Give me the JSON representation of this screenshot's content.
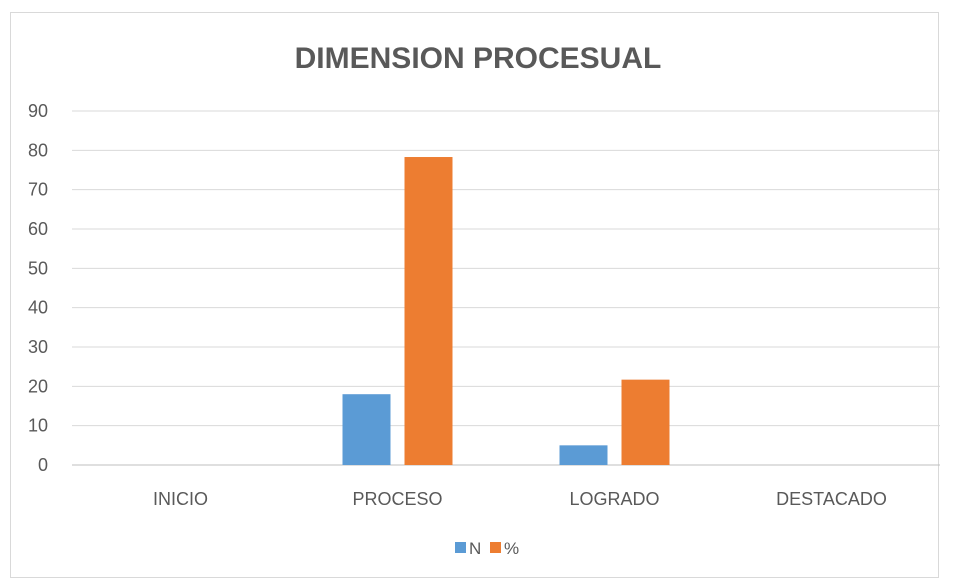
{
  "chart_data": {
    "type": "bar",
    "title": "DIMENSION PROCESUAL",
    "categories": [
      "INICIO",
      "PROCESO",
      "LOGRADO",
      "DESTACADO"
    ],
    "series": [
      {
        "name": "N",
        "color": "#5b9bd5",
        "values": [
          0,
          18,
          5,
          0
        ]
      },
      {
        "name": "%",
        "color": "#ed7d31",
        "values": [
          0,
          78.3,
          21.7,
          0
        ]
      }
    ],
    "ylim": [
      0,
      90
    ],
    "yticks": [
      "0",
      "10",
      "20",
      "30",
      "40",
      "50",
      "60",
      "70",
      "80",
      "90"
    ],
    "grid": true,
    "legend": "bottom"
  }
}
